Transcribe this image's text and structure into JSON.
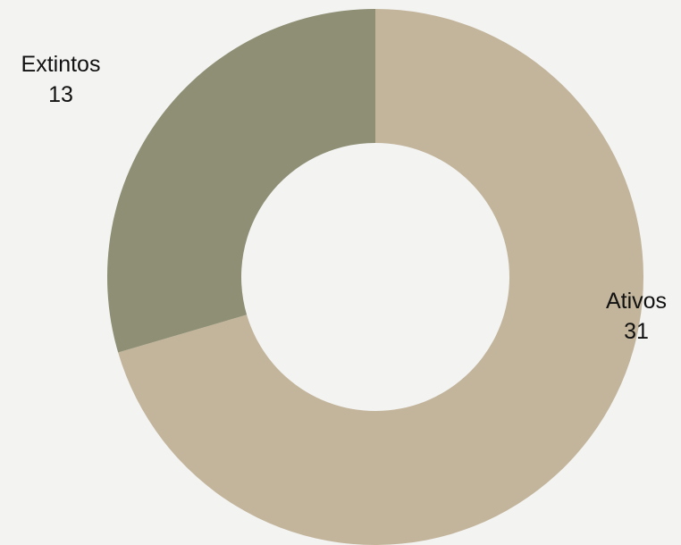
{
  "chart_data": {
    "type": "pie",
    "title": "",
    "donut": true,
    "labels": [
      "Ativos",
      "Extintos"
    ],
    "values": [
      31,
      13
    ],
    "colors": [
      "#c3b59b",
      "#8e8f74"
    ],
    "legend": "none",
    "data_labels": "outside-with-values"
  }
}
